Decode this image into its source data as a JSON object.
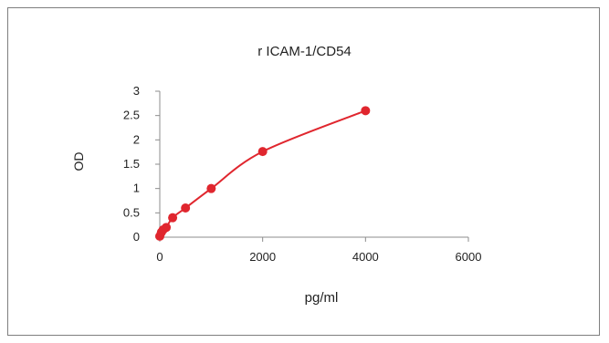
{
  "chart_data": {
    "type": "scatter",
    "title": "r  ICAM-1/CD54",
    "xlabel": "pg/ml",
    "ylabel": "OD",
    "xlim": [
      0,
      6000
    ],
    "ylim": [
      0,
      3
    ],
    "x_ticks": [
      0,
      2000,
      4000,
      6000
    ],
    "x_tick_labels": [
      "0",
      "2000",
      "4000",
      "6000"
    ],
    "y_ticks": [
      0,
      0.5,
      1,
      1.5,
      2,
      2.5,
      3
    ],
    "y_tick_labels": [
      "0",
      "0.5",
      "1",
      "1.5",
      "2",
      "2.5",
      "3"
    ],
    "grid": false,
    "legend": "none",
    "series": [
      {
        "color": "#e0262e",
        "points": [
          {
            "x": 0,
            "y": 0.02
          },
          {
            "x": 31.25,
            "y": 0.1
          },
          {
            "x": 62.5,
            "y": 0.15
          },
          {
            "x": 125,
            "y": 0.2
          },
          {
            "x": 250,
            "y": 0.4
          },
          {
            "x": 500,
            "y": 0.6
          },
          {
            "x": 1000,
            "y": 1.0
          },
          {
            "x": 2000,
            "y": 1.76
          },
          {
            "x": 4000,
            "y": 2.6
          }
        ]
      }
    ]
  }
}
